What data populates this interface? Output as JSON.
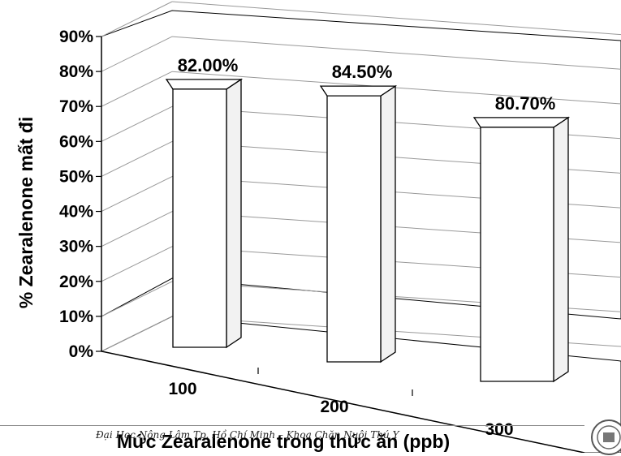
{
  "chart_data": {
    "type": "bar",
    "categories": [
      "100",
      "200",
      "300"
    ],
    "values": [
      82.0,
      84.5,
      80.7
    ],
    "data_labels": [
      "82.00%",
      "84.50%",
      "80.70%"
    ],
    "ylabel": "% Zearalenone mất đi",
    "xlabel": "Mức Zearalenone trong thức ăn (ppb)",
    "ylim": [
      0,
      90
    ],
    "yticks": [
      "0%",
      "10%",
      "20%",
      "30%",
      "40%",
      "50%",
      "60%",
      "70%",
      "80%",
      "90%"
    ],
    "grid": true,
    "legend": "none",
    "style": "3d-column",
    "bar_color": "#ffffff",
    "edge_color": "#000000"
  },
  "footer": {
    "text": "Đại Học Nông Lâm Tp. Hồ Chí Minh – Khoa Chăn Nuôi Thú Y"
  }
}
